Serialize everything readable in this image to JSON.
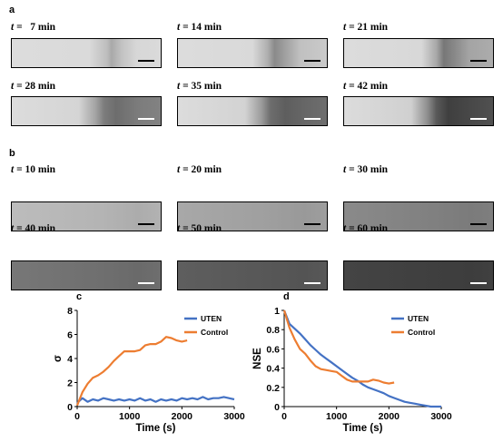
{
  "panels": {
    "a": {
      "letter": "a",
      "images": [
        {
          "t_var": "t",
          "eq": " =   ",
          "value": "7",
          "unit": " min",
          "scalebar": "black"
        },
        {
          "t_var": "t",
          "eq": " = ",
          "value": "14",
          "unit": " min",
          "scalebar": "black"
        },
        {
          "t_var": "t",
          "eq": " = ",
          "value": "21",
          "unit": " min",
          "scalebar": "black"
        },
        {
          "t_var": "t",
          "eq": " = ",
          "value": "28",
          "unit": " min",
          "scalebar": "white"
        },
        {
          "t_var": "t",
          "eq": " = ",
          "value": "35",
          "unit": " min",
          "scalebar": "white"
        },
        {
          "t_var": "t",
          "eq": " = ",
          "value": "42",
          "unit": " min",
          "scalebar": "white"
        }
      ]
    },
    "b": {
      "letter": "b",
      "images": [
        {
          "t_var": "t",
          "eq": " = ",
          "value": "10",
          "unit": " min",
          "scalebar": "black"
        },
        {
          "t_var": "t",
          "eq": " = ",
          "value": "20",
          "unit": " min",
          "scalebar": "black"
        },
        {
          "t_var": "t",
          "eq": " = ",
          "value": "30",
          "unit": " min",
          "scalebar": "black"
        },
        {
          "t_var": "t",
          "eq": " = ",
          "value": "40",
          "unit": " min",
          "scalebar": "white"
        },
        {
          "t_var": "t",
          "eq": " = ",
          "value": "50",
          "unit": " min",
          "scalebar": "white"
        },
        {
          "t_var": "t",
          "eq": " = ",
          "value": "60",
          "unit": " min",
          "scalebar": "white"
        }
      ]
    },
    "c": {
      "letter": "c"
    },
    "d": {
      "letter": "d"
    }
  },
  "colors": {
    "uten": "#4472c4",
    "control": "#ed7d31"
  },
  "chart_data": [
    {
      "type": "line",
      "panel": "c",
      "xlabel": "Time (s)",
      "ylabel": "σ",
      "xlim": [
        0,
        3000
      ],
      "ylim": [
        0,
        8
      ],
      "xticks": [
        0,
        1000,
        2000,
        3000
      ],
      "yticks": [
        0,
        2,
        4,
        6,
        8
      ],
      "xtick_labels": [
        "0",
        "1000",
        "2000",
        "3000"
      ],
      "ytick_labels": [
        "0",
        "2",
        "4",
        "6",
        "8"
      ],
      "legend_position": "top-right",
      "series": [
        {
          "name": "UTEN",
          "x": [
            0,
            100,
            200,
            300,
            400,
            500,
            600,
            700,
            800,
            900,
            1000,
            1100,
            1200,
            1300,
            1400,
            1500,
            1600,
            1700,
            1800,
            1900,
            2000,
            2100,
            2200,
            2300,
            2400,
            2500,
            2600,
            2700,
            2800,
            2900,
            3000
          ],
          "y": [
            0.3,
            0.7,
            0.4,
            0.6,
            0.5,
            0.7,
            0.6,
            0.5,
            0.6,
            0.5,
            0.6,
            0.5,
            0.7,
            0.5,
            0.6,
            0.4,
            0.6,
            0.5,
            0.6,
            0.5,
            0.7,
            0.6,
            0.7,
            0.6,
            0.8,
            0.6,
            0.7,
            0.7,
            0.8,
            0.7,
            0.6
          ]
        },
        {
          "name": "Control",
          "x": [
            0,
            100,
            200,
            300,
            400,
            500,
            600,
            700,
            800,
            900,
            1000,
            1100,
            1200,
            1300,
            1400,
            1500,
            1600,
            1700,
            1800,
            1900,
            2000,
            2100
          ],
          "y": [
            0.1,
            1.2,
            1.9,
            2.4,
            2.6,
            2.9,
            3.3,
            3.8,
            4.2,
            4.6,
            4.6,
            4.6,
            4.7,
            5.1,
            5.2,
            5.2,
            5.4,
            5.8,
            5.7,
            5.5,
            5.4,
            5.5
          ]
        }
      ]
    },
    {
      "type": "line",
      "panel": "d",
      "xlabel": "Time (s)",
      "ylabel": "NSE",
      "xlim": [
        0,
        3000
      ],
      "ylim": [
        0,
        1
      ],
      "xticks": [
        0,
        1000,
        2000,
        3000
      ],
      "yticks": [
        0,
        0.2,
        0.4,
        0.6,
        0.8,
        1
      ],
      "xtick_labels": [
        "0",
        "1000",
        "2000",
        "3000"
      ],
      "ytick_labels": [
        "0",
        "0.2",
        "0.4",
        "0.6",
        "0.8",
        "1"
      ],
      "legend_position": "top-right",
      "series": [
        {
          "name": "UTEN",
          "x": [
            0,
            100,
            200,
            300,
            400,
            500,
            600,
            700,
            800,
            900,
            1000,
            1100,
            1200,
            1300,
            1400,
            1500,
            1600,
            1700,
            1800,
            1900,
            2000,
            2100,
            2200,
            2300,
            2400,
            2500,
            2600,
            2700,
            2800,
            2900,
            3000
          ],
          "y": [
            1.0,
            0.86,
            0.81,
            0.76,
            0.7,
            0.64,
            0.59,
            0.54,
            0.5,
            0.46,
            0.42,
            0.38,
            0.34,
            0.3,
            0.27,
            0.23,
            0.2,
            0.18,
            0.16,
            0.14,
            0.11,
            0.09,
            0.07,
            0.05,
            0.04,
            0.03,
            0.02,
            0.01,
            0.0,
            0.0,
            0.0
          ]
        },
        {
          "name": "Control",
          "x": [
            0,
            100,
            200,
            300,
            400,
            500,
            600,
            700,
            800,
            900,
            1000,
            1100,
            1200,
            1300,
            1400,
            1500,
            1600,
            1700,
            1800,
            1900,
            2000,
            2100
          ],
          "y": [
            1.0,
            0.82,
            0.7,
            0.6,
            0.55,
            0.48,
            0.42,
            0.39,
            0.38,
            0.37,
            0.36,
            0.32,
            0.28,
            0.26,
            0.26,
            0.26,
            0.26,
            0.28,
            0.27,
            0.25,
            0.24,
            0.25
          ]
        }
      ]
    }
  ]
}
